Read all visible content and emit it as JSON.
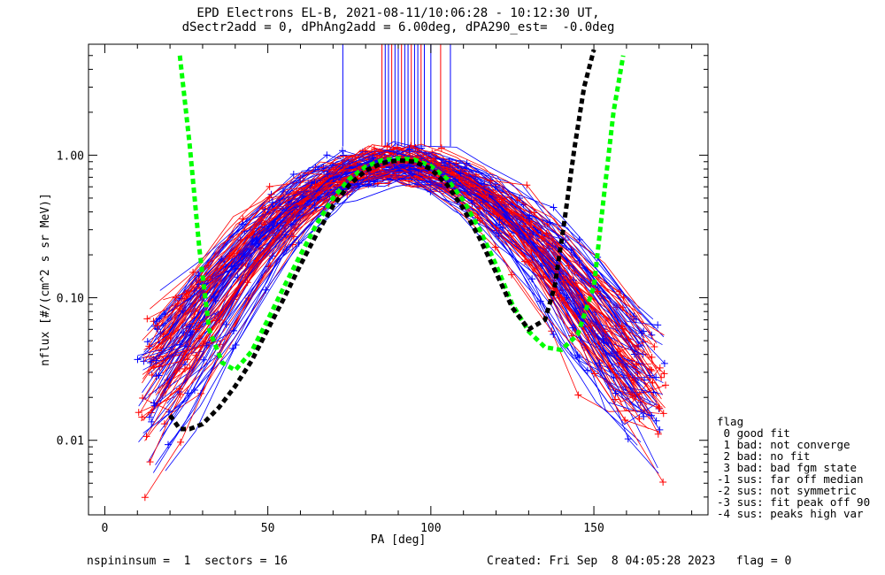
{
  "chart_data": {
    "type": "scatter",
    "title": "EPD Electrons EL-B, 2021-08-11/10:06:28 - 10:12:30 UT,",
    "subtitle": "dSectr2add = 0, dPhAng2add = 6.00deg, dPA290_est=  -0.0deg",
    "xlabel": "PA [deg]",
    "ylabel": "nflux [#/(cm^2 s sr MeV)]",
    "xlim": [
      -5,
      185
    ],
    "ylim": [
      0.003,
      6
    ],
    "y_scale": "log",
    "x_ticks": [
      "0",
      "50",
      "100",
      "150"
    ],
    "y_ticks": [
      "0.01",
      "0.10",
      "1.00"
    ],
    "series_colors": {
      "red": "#ff0000",
      "blue": "#0000ff",
      "fit_green": "#00ff00",
      "fit_black": "#000000"
    },
    "fits": [
      {
        "color": "fit_green",
        "x": [
          23,
          26,
          29,
          32,
          36,
          40,
          45,
          50,
          55,
          60,
          65,
          70,
          75,
          80,
          85,
          90,
          95,
          100,
          105,
          110,
          115,
          120,
          125,
          130,
          135,
          140,
          145,
          150,
          153,
          156,
          159
        ],
        "y": [
          5.0,
          1.2,
          0.22,
          0.06,
          0.035,
          0.031,
          0.042,
          0.07,
          0.12,
          0.2,
          0.33,
          0.5,
          0.68,
          0.83,
          0.92,
          0.95,
          0.93,
          0.84,
          0.68,
          0.48,
          0.3,
          0.17,
          0.09,
          0.058,
          0.045,
          0.043,
          0.055,
          0.12,
          0.5,
          2.0,
          5.0
        ]
      },
      {
        "color": "fit_black",
        "x": [
          20,
          23,
          26,
          30,
          35,
          40,
          45,
          50,
          55,
          60,
          65,
          70,
          75,
          80,
          85,
          90,
          95,
          100,
          105,
          110,
          115,
          120,
          125,
          130,
          135,
          138,
          141,
          144,
          147,
          150
        ],
        "y": [
          0.015,
          0.012,
          0.012,
          0.013,
          0.017,
          0.024,
          0.036,
          0.06,
          0.1,
          0.17,
          0.28,
          0.44,
          0.62,
          0.78,
          0.88,
          0.92,
          0.9,
          0.8,
          0.62,
          0.42,
          0.26,
          0.15,
          0.085,
          0.06,
          0.07,
          0.12,
          0.35,
          1.1,
          3.0,
          5.5
        ]
      }
    ],
    "peak_markers_x": [
      73,
      85,
      86,
      87,
      88,
      89,
      90,
      91,
      92,
      93,
      94,
      95,
      96,
      97,
      98,
      100,
      103,
      106
    ]
  },
  "legend": {
    "title": "flag",
    "items": [
      " 0 good fit",
      " 1 bad: not converge",
      " 2 bad: no fit",
      " 3 bad: bad fgm state",
      "-1 sus: far off median",
      "-2 sus: not symmetric",
      "-3 sus: fit peak off 90",
      "-4 sus: peaks high var"
    ]
  },
  "footer": {
    "left": "nspininsum =  1  sectors = 16",
    "right": "Created: Fri Sep  8 04:05:28 2023   flag = 0"
  }
}
